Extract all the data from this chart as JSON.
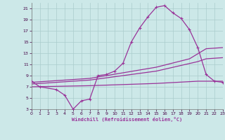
{
  "xlabel": "Windchill (Refroidissement éolien,°C)",
  "bg_color": "#cce8e8",
  "line_color": "#993399",
  "grid_color": "#aacccc",
  "xmin": 0,
  "xmax": 23,
  "ymin": 3,
  "ymax": 22,
  "yticks": [
    3,
    5,
    7,
    9,
    11,
    13,
    15,
    17,
    19,
    21
  ],
  "xticks": [
    0,
    1,
    2,
    3,
    4,
    5,
    6,
    7,
    8,
    9,
    10,
    11,
    12,
    13,
    14,
    15,
    16,
    17,
    18,
    19,
    20,
    21,
    22,
    23
  ],
  "curve1_x": [
    0,
    1,
    3,
    4,
    5,
    6,
    7,
    8,
    9,
    10,
    11,
    12,
    13,
    14,
    15,
    16,
    17,
    18,
    19,
    20,
    21,
    22,
    23
  ],
  "curve1_y": [
    8,
    7,
    6.5,
    5.5,
    3.0,
    4.5,
    4.8,
    9.0,
    9.2,
    9.8,
    11.2,
    15.0,
    17.5,
    19.5,
    21.2,
    21.5,
    20.2,
    19.2,
    17.2,
    14.0,
    9.2,
    8.0,
    7.8
  ],
  "line1_x": [
    0,
    7,
    15,
    19,
    21,
    23
  ],
  "line1_y": [
    7.8,
    8.5,
    10.5,
    12.0,
    13.8,
    14.0
  ],
  "line2_x": [
    0,
    7,
    15,
    20,
    21,
    23
  ],
  "line2_y": [
    7.5,
    8.2,
    9.8,
    11.5,
    12.0,
    12.2
  ],
  "line3_x": [
    0,
    7,
    15,
    20,
    23
  ],
  "line3_y": [
    7.0,
    7.2,
    7.6,
    8.0,
    8.0
  ]
}
